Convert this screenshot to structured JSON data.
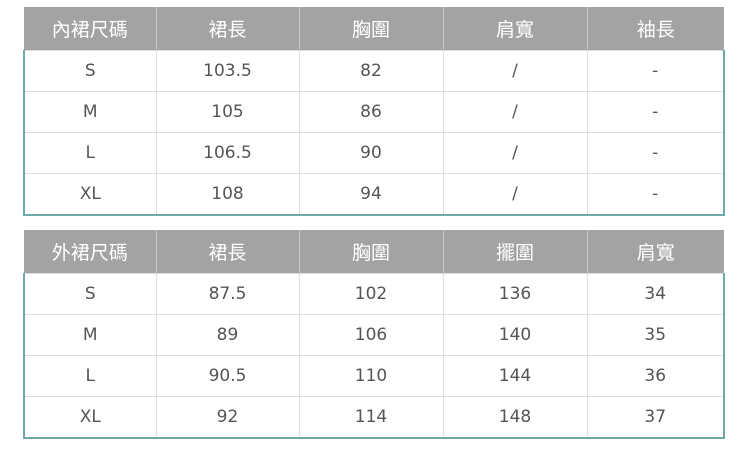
{
  "inner_skirt": {
    "headers": [
      "內裙尺碼",
      "裙長",
      "胸圍",
      "肩寬",
      "袖長"
    ],
    "rows": [
      [
        "S",
        "103.5",
        "82",
        "/",
        "-"
      ],
      [
        "M",
        "105",
        "86",
        "/",
        "-"
      ],
      [
        "L",
        "106.5",
        "90",
        "/",
        "-"
      ],
      [
        "XL",
        "108",
        "94",
        "/",
        "-"
      ]
    ]
  },
  "outer_skirt": {
    "headers": [
      "外裙尺碼",
      "裙長",
      "胸圍",
      "擺圍",
      "肩寬"
    ],
    "rows": [
      [
        "S",
        "87.5",
        "102",
        "136",
        "34"
      ],
      [
        "M",
        "89",
        "106",
        "140",
        "35"
      ],
      [
        "L",
        "90.5",
        "110",
        "144",
        "36"
      ],
      [
        "XL",
        "92",
        "114",
        "148",
        "37"
      ]
    ]
  }
}
